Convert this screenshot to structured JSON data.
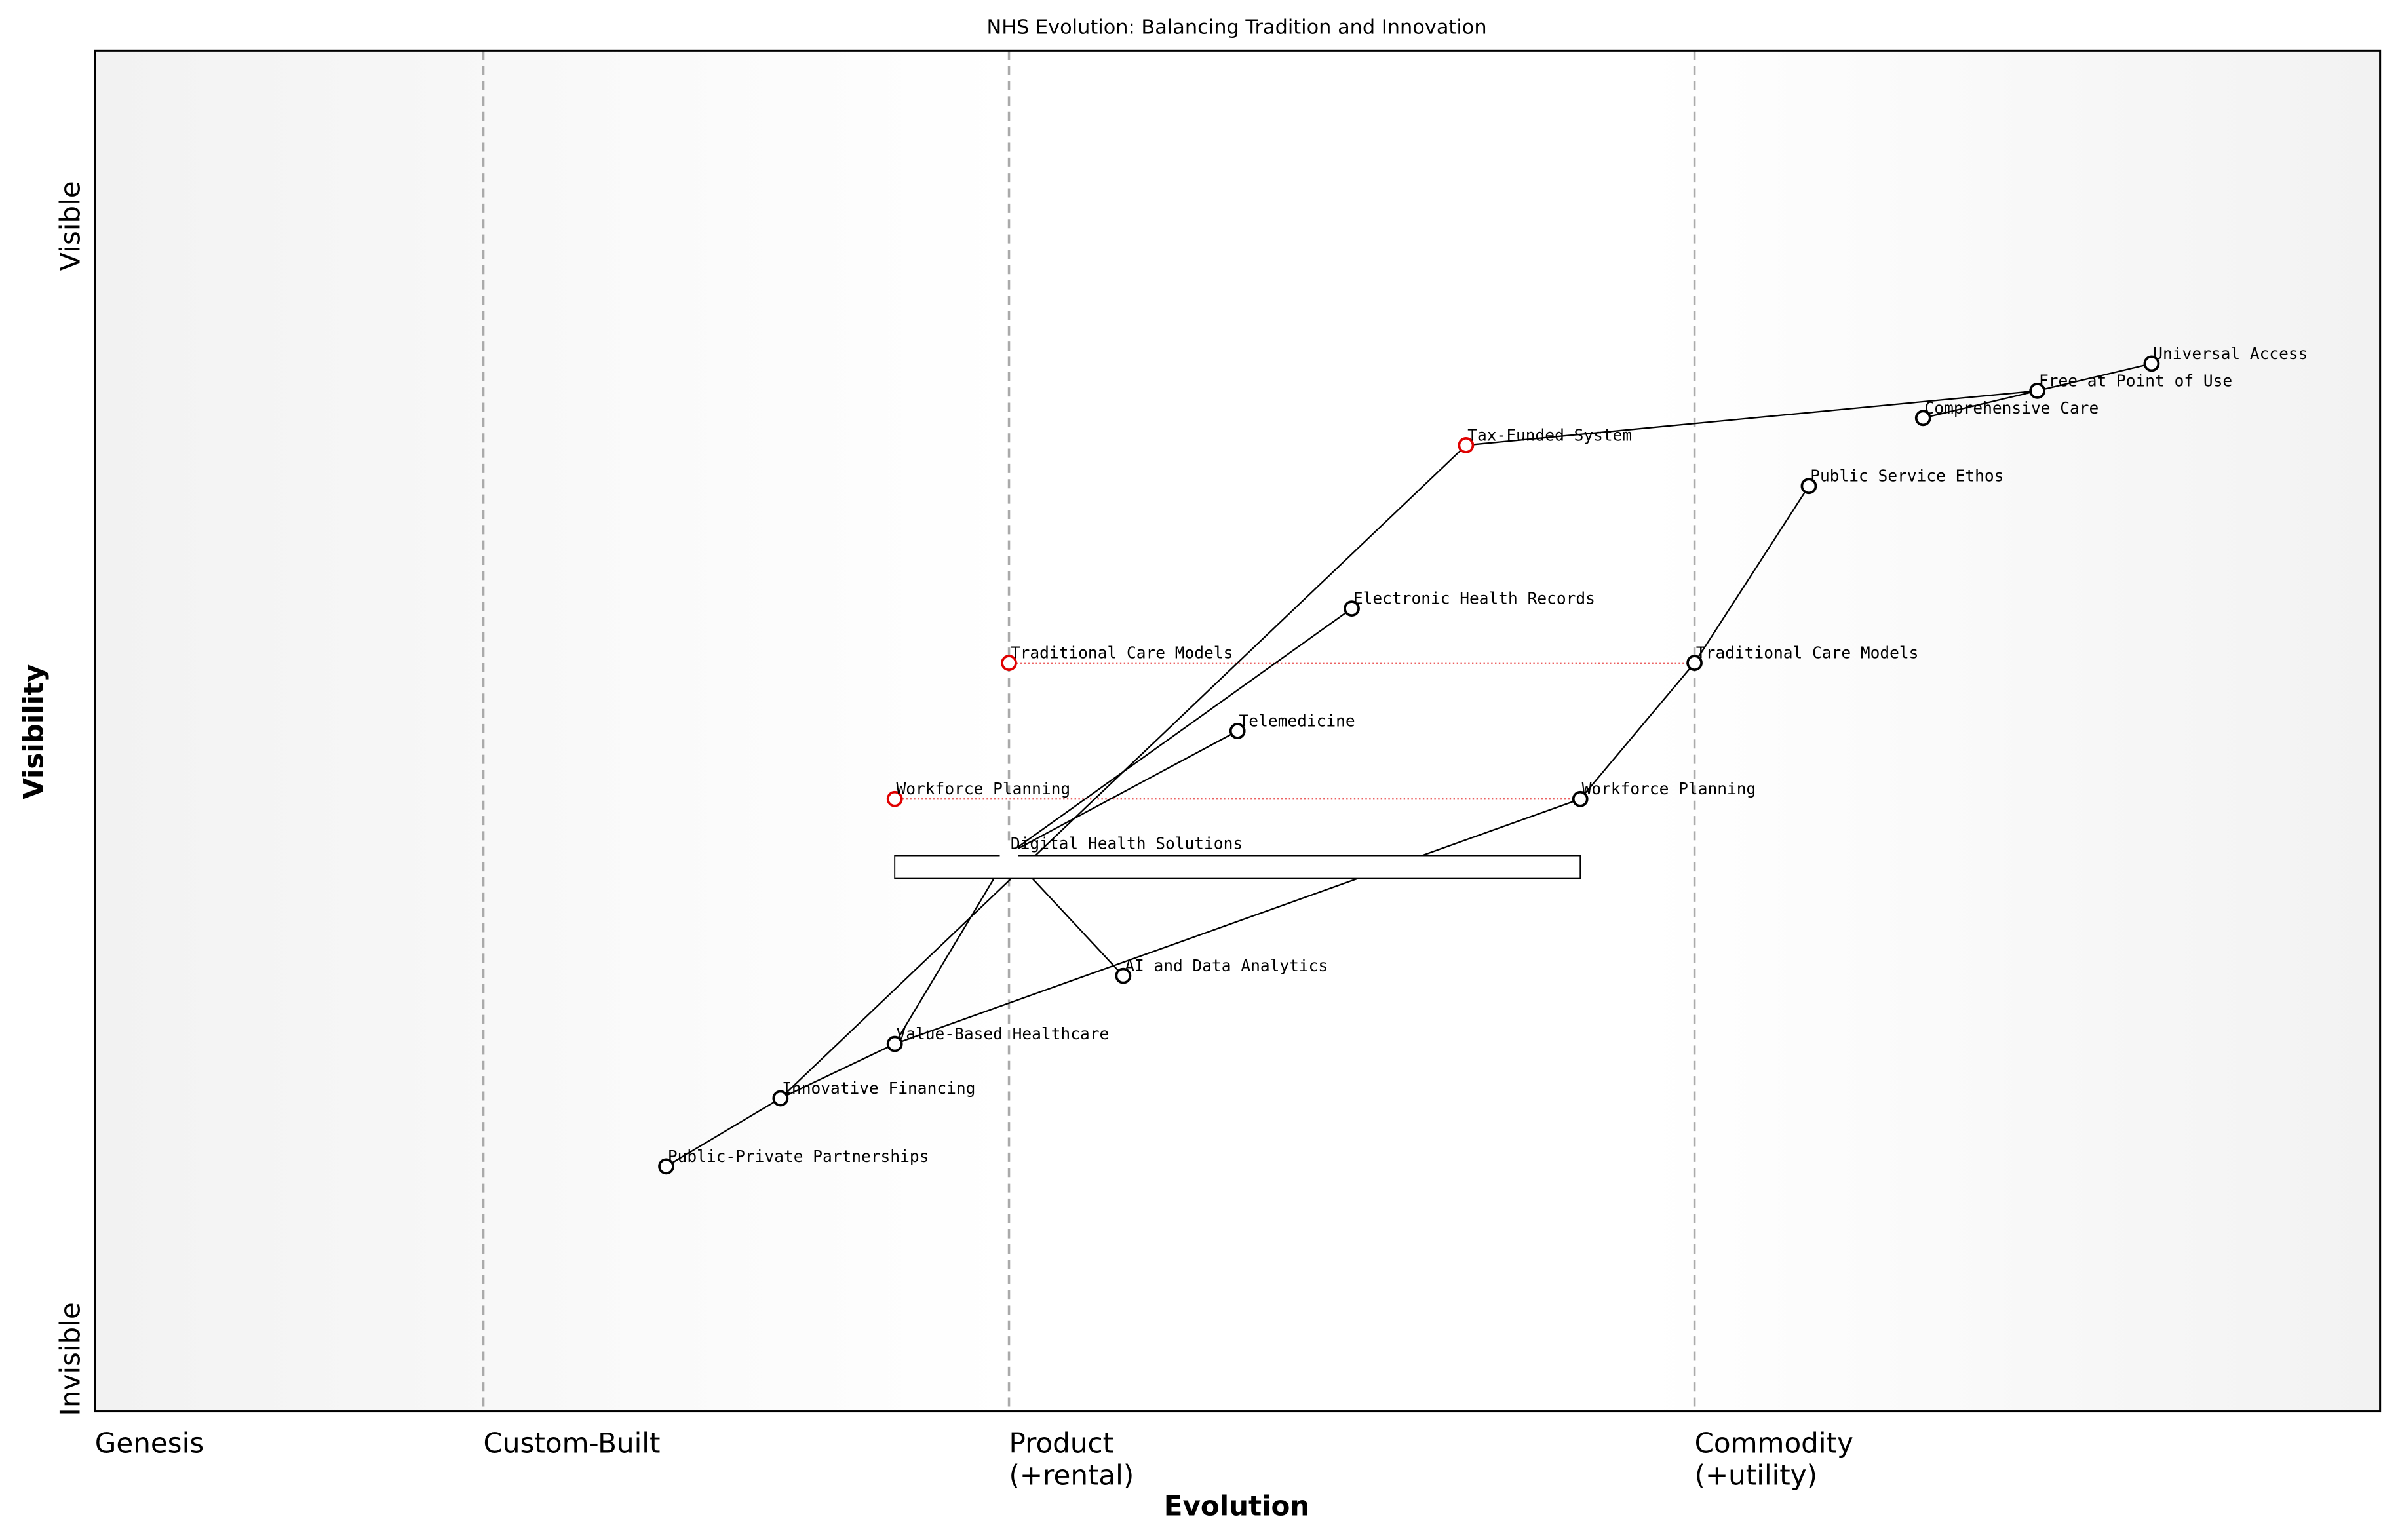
{
  "title": "NHS Evolution: Balancing Tradition and Innovation",
  "x_axis": {
    "label": "Evolution",
    "lim": [
      0,
      1
    ],
    "stages": [
      {
        "lines": [
          "Genesis"
        ],
        "position": 0
      },
      {
        "lines": [
          "Custom-Built"
        ],
        "position": 0.17
      },
      {
        "lines": [
          "Product",
          "(+rental)"
        ],
        "position": 0.4
      },
      {
        "lines": [
          "Commodity",
          "(+utility)"
        ],
        "position": 0.7
      }
    ]
  },
  "y_axis": {
    "label": "Visibility",
    "top": "Visible",
    "bottom": "Invisible",
    "lim": [
      0,
      1
    ]
  },
  "components": [
    {
      "name": "Universal Access",
      "evolution": 0.9,
      "visibility": 0.77,
      "color": "#000000"
    },
    {
      "name": "Free at Point of Use",
      "evolution": 0.85,
      "visibility": 0.75,
      "color": "#000000"
    },
    {
      "name": "Comprehensive Care",
      "evolution": 0.8,
      "visibility": 0.73,
      "color": "#000000"
    },
    {
      "name": "Tax-Funded System",
      "evolution": 0.6,
      "visibility": 0.71,
      "color": "#e00000"
    },
    {
      "name": "Public Service Ethos",
      "evolution": 0.75,
      "visibility": 0.68,
      "color": "#000000"
    },
    {
      "name": "Electronic Health Records",
      "evolution": 0.55,
      "visibility": 0.59,
      "color": "#000000"
    },
    {
      "name": "Traditional Care Models",
      "evolution": 0.4,
      "visibility": 0.55,
      "color": "#e00000"
    },
    {
      "name": "Traditional Care Models",
      "evolution": 0.7,
      "visibility": 0.55,
      "color": "#000000"
    },
    {
      "name": "Telemedicine",
      "evolution": 0.5,
      "visibility": 0.5,
      "color": "#000000"
    },
    {
      "name": "Workforce Planning",
      "evolution": 0.35,
      "visibility": 0.45,
      "color": "#e00000"
    },
    {
      "name": "Workforce Planning",
      "evolution": 0.65,
      "visibility": 0.45,
      "color": "#000000"
    },
    {
      "name": "Digital Health Solutions",
      "evolution": 0.4,
      "visibility": 0.41,
      "color": "#ffffff"
    },
    {
      "name": "AI and Data Analytics",
      "evolution": 0.45,
      "visibility": 0.32,
      "color": "#000000"
    },
    {
      "name": "Value-Based Healthcare",
      "evolution": 0.35,
      "visibility": 0.27,
      "color": "#000000"
    },
    {
      "name": "Innovative Financing",
      "evolution": 0.3,
      "visibility": 0.23,
      "color": "#000000"
    },
    {
      "name": "Public-Private Partnerships",
      "evolution": 0.25,
      "visibility": 0.18,
      "color": "#000000"
    }
  ],
  "links": [
    [
      0,
      1
    ],
    [
      1,
      3
    ],
    [
      2,
      1
    ],
    [
      3,
      14
    ],
    [
      4,
      7
    ],
    [
      7,
      10
    ],
    [
      10,
      13
    ],
    [
      5,
      11
    ],
    [
      8,
      11
    ],
    [
      11,
      12
    ],
    [
      11,
      13
    ],
    [
      14,
      15
    ],
    [
      14,
      13
    ]
  ],
  "evolutions": [
    [
      6,
      7
    ],
    [
      9,
      10
    ]
  ],
  "pipelines": [
    {
      "component": 11,
      "start": 0.35,
      "end": 0.65,
      "visibility": 0.4
    }
  ]
}
